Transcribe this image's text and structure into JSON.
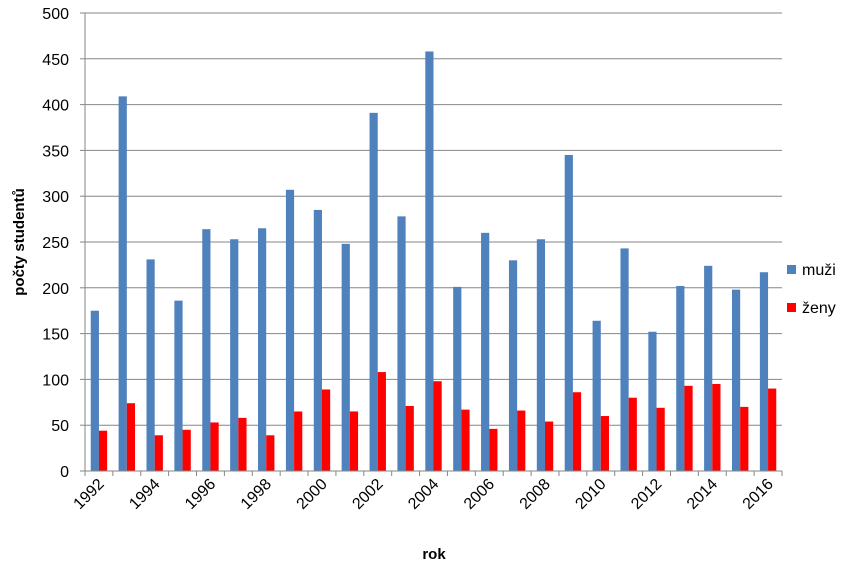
{
  "chart_data": {
    "type": "bar",
    "categories": [
      "1992",
      "1993",
      "1994",
      "1995",
      "1996",
      "1997",
      "1998",
      "1999",
      "2000",
      "2001",
      "2002",
      "2003",
      "2004",
      "2005",
      "2006",
      "2007",
      "2008",
      "2009",
      "2010",
      "2011",
      "2012",
      "2013",
      "2014",
      "2015",
      "2016"
    ],
    "tick_labels": [
      "1992",
      "",
      "1994",
      "",
      "1996",
      "",
      "1998",
      "",
      "2000",
      "",
      "2002",
      "",
      "2004",
      "",
      "2006",
      "",
      "2008",
      "",
      "2010",
      "",
      "2012",
      "",
      "2014",
      "",
      "2016"
    ],
    "series": [
      {
        "name": "muži",
        "color": "#4F81BD",
        "values": [
          175,
          409,
          231,
          186,
          264,
          253,
          265,
          307,
          285,
          248,
          391,
          278,
          458,
          201,
          260,
          230,
          253,
          345,
          164,
          243,
          152,
          202,
          224,
          198,
          217
        ]
      },
      {
        "name": "ženy",
        "color": "#FF0000",
        "values": [
          44,
          74,
          39,
          45,
          53,
          58,
          39,
          65,
          89,
          65,
          108,
          71,
          98,
          67,
          46,
          66,
          54,
          86,
          60,
          80,
          69,
          93,
          95,
          70,
          90
        ]
      }
    ],
    "xlabel": "rok",
    "ylabel": "počty studentů",
    "ylim": [
      0,
      500
    ],
    "yticks": [
      "0",
      "50",
      "100",
      "150",
      "200",
      "250",
      "300",
      "350",
      "400",
      "450",
      "500"
    ],
    "grid": true,
    "legend": "right"
  }
}
